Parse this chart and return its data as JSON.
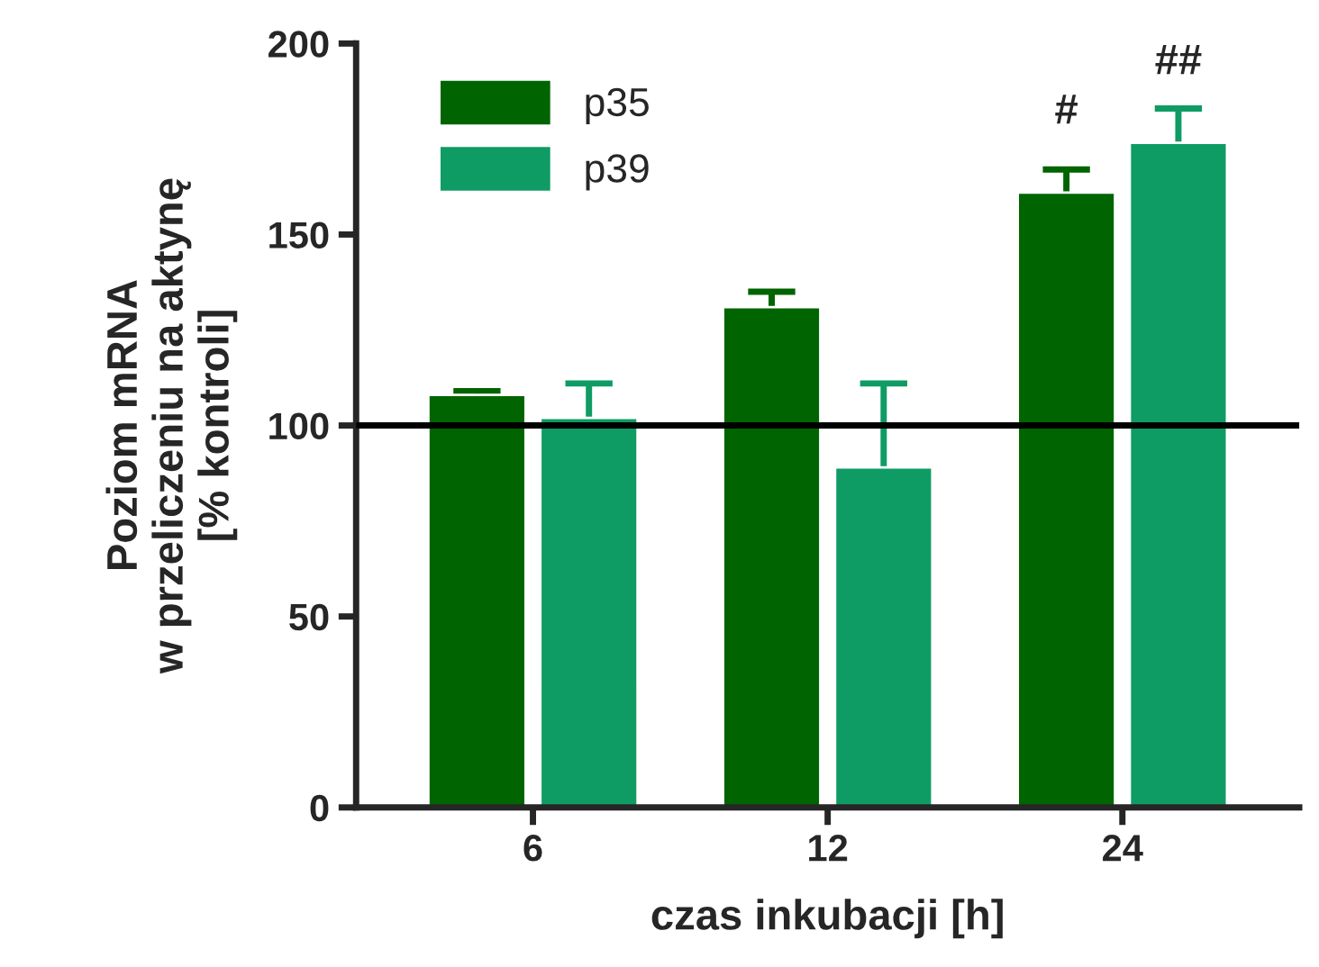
{
  "chart_data": {
    "type": "bar",
    "xlabel": "czas inkubacji [h]",
    "ylabel": "Poziom mRNA\nw przeliczeniu na aktynę\n[% kontroli]",
    "categories": [
      "6",
      "12",
      "24"
    ],
    "series": [
      {
        "name": "p35",
        "color": "#006400",
        "values": [
          108,
          131,
          161
        ],
        "errors": [
          [
            108,
            109
          ],
          [
            131,
            135
          ],
          [
            161,
            167
          ]
        ]
      },
      {
        "name": "p39",
        "color": "#0f9b64",
        "values": [
          102,
          89,
          174
        ],
        "errors": [
          [
            102,
            111
          ],
          [
            89,
            111
          ],
          [
            174,
            183
          ]
        ]
      }
    ],
    "ylim": [
      0,
      200
    ],
    "yticks": [
      0,
      50,
      100,
      150,
      200
    ],
    "ref_lines": [
      {
        "axis": "y",
        "value": 100,
        "color": "#000000"
      }
    ],
    "annotations": [
      {
        "text": "#",
        "x": "24",
        "y": 161
      },
      {
        "text": "##",
        "x": "24",
        "y": 174
      }
    ],
    "legend": "top left",
    "grid": false
  }
}
